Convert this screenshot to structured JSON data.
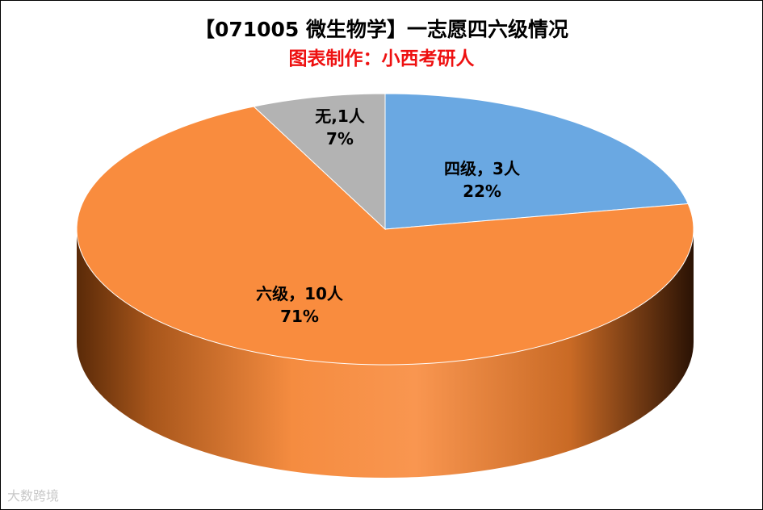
{
  "chart_data": {
    "type": "pie",
    "title": "【071005 微生物学】一志愿四六级情况",
    "subtitle": "图表制作：小西考研人",
    "slices": [
      {
        "name": "四级",
        "count": 3,
        "value": 22,
        "label_line1": "四级，3人",
        "label_line2": "22%",
        "color": "#6aa8e2"
      },
      {
        "name": "六级",
        "count": 10,
        "value": 71,
        "label_line1": "六级，10人",
        "label_line2": "71%",
        "color": "#f98c3e"
      },
      {
        "name": "无",
        "count": 1,
        "value": 7,
        "label_line1": "无,1人",
        "label_line2": "7%",
        "color": "#b3b3b3"
      }
    ]
  },
  "watermark": "大数跨境"
}
